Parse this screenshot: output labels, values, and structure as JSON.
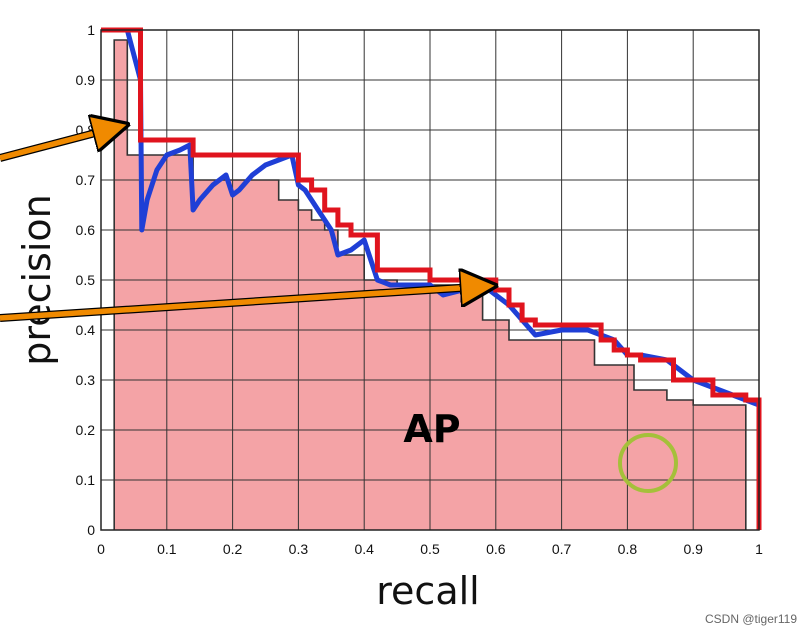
{
  "chart_data": {
    "type": "line",
    "title": "",
    "xlabel": "recall",
    "ylabel": "precision",
    "xlim": [
      0,
      1
    ],
    "ylim": [
      0,
      1
    ],
    "grid": true,
    "x_ticks": [
      "0",
      "0.1",
      "0.2",
      "0.3",
      "0.4",
      "0.5",
      "0.6",
      "0.7",
      "0.8",
      "0.9",
      "1"
    ],
    "y_ticks": [
      "0",
      "0.1",
      "0.2",
      "0.3",
      "0.4",
      "0.5",
      "0.6",
      "0.7",
      "0.8",
      "0.9",
      "1"
    ],
    "annotation": "AP",
    "colors": {
      "area_fill": "#f4a3a6",
      "interpolated": "#e0141e",
      "raw": "#1f3fd6",
      "step": "#333333",
      "arrow": "#f08a00",
      "circle": "#a5c03a"
    },
    "series": [
      {
        "key": "raw",
        "x": [
          0.0,
          0.02,
          0.04,
          0.06,
          0.062,
          0.07,
          0.085,
          0.1,
          0.12,
          0.135,
          0.14,
          0.15,
          0.17,
          0.19,
          0.2,
          0.21,
          0.23,
          0.25,
          0.27,
          0.29,
          0.3,
          0.31,
          0.33,
          0.35,
          0.36,
          0.38,
          0.4,
          0.42,
          0.44,
          0.47,
          0.5,
          0.52,
          0.55,
          0.58,
          0.6,
          0.62,
          0.64,
          0.66,
          0.7,
          0.74,
          0.78,
          0.8,
          0.82,
          0.86,
          0.9,
          0.94,
          0.98,
          1.0
        ],
        "y": [
          1.0,
          1.0,
          1.0,
          0.9,
          0.6,
          0.66,
          0.72,
          0.75,
          0.76,
          0.77,
          0.64,
          0.66,
          0.69,
          0.71,
          0.67,
          0.68,
          0.71,
          0.73,
          0.74,
          0.75,
          0.69,
          0.68,
          0.64,
          0.6,
          0.55,
          0.56,
          0.58,
          0.5,
          0.49,
          0.49,
          0.49,
          0.47,
          0.48,
          0.49,
          0.47,
          0.45,
          0.42,
          0.39,
          0.4,
          0.4,
          0.38,
          0.35,
          0.35,
          0.34,
          0.3,
          0.28,
          0.26,
          0.25
        ]
      },
      {
        "key": "interpolated",
        "x": [
          0.0,
          0.06,
          0.06,
          0.14,
          0.14,
          0.3,
          0.3,
          0.32,
          0.32,
          0.34,
          0.34,
          0.36,
          0.36,
          0.38,
          0.38,
          0.42,
          0.42,
          0.5,
          0.5,
          0.6,
          0.6,
          0.62,
          0.62,
          0.64,
          0.64,
          0.66,
          0.66,
          0.76,
          0.76,
          0.78,
          0.78,
          0.8,
          0.8,
          0.82,
          0.82,
          0.87,
          0.87,
          0.93,
          0.93,
          0.98,
          0.98,
          1.0,
          1.0
        ],
        "y": [
          1.0,
          1.0,
          0.78,
          0.78,
          0.75,
          0.75,
          0.7,
          0.7,
          0.68,
          0.68,
          0.64,
          0.64,
          0.61,
          0.61,
          0.59,
          0.59,
          0.52,
          0.52,
          0.5,
          0.5,
          0.48,
          0.48,
          0.45,
          0.45,
          0.42,
          0.42,
          0.41,
          0.41,
          0.38,
          0.38,
          0.36,
          0.36,
          0.35,
          0.35,
          0.34,
          0.34,
          0.3,
          0.3,
          0.27,
          0.27,
          0.26,
          0.26,
          0.0
        ]
      },
      {
        "key": "step",
        "x": [
          0.02,
          0.02,
          0.04,
          0.04,
          0.04,
          0.14,
          0.14,
          0.27,
          0.27,
          0.3,
          0.3,
          0.32,
          0.32,
          0.34,
          0.34,
          0.36,
          0.36,
          0.4,
          0.4,
          0.45,
          0.45,
          0.58,
          0.58,
          0.62,
          0.62,
          0.75,
          0.75,
          0.81,
          0.81,
          0.86,
          0.86,
          0.9,
          0.9,
          0.98,
          0.98
        ],
        "y": [
          0.0,
          0.98,
          0.98,
          0.8,
          0.75,
          0.75,
          0.7,
          0.7,
          0.66,
          0.66,
          0.64,
          0.64,
          0.62,
          0.62,
          0.6,
          0.6,
          0.55,
          0.55,
          0.5,
          0.5,
          0.49,
          0.49,
          0.42,
          0.42,
          0.38,
          0.38,
          0.33,
          0.33,
          0.28,
          0.28,
          0.26,
          0.26,
          0.25,
          0.25,
          0.0
        ]
      }
    ]
  },
  "watermark": "CSDN @tiger119"
}
